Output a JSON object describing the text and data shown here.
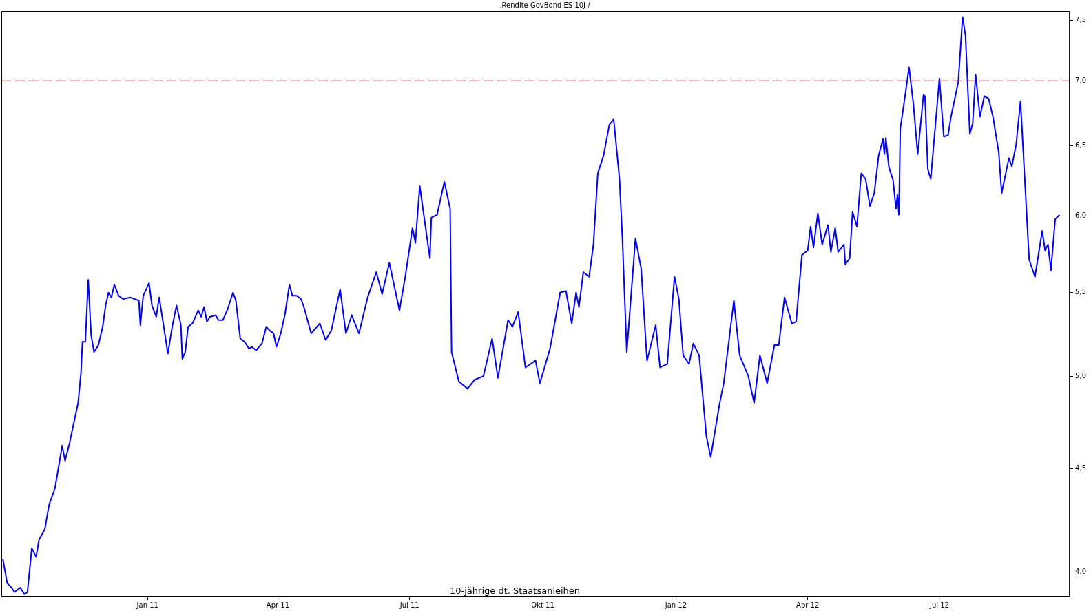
{
  "chart_data": {
    "type": "line",
    "title": ".Rendite GovBond ES 10J /",
    "annotations": [
      "10-jährige dt. Staatsanleihen"
    ],
    "x": [
      "2010-09-23",
      "2010-09-26",
      "2010-09-29",
      "2010-10-01",
      "2010-10-05",
      "2010-10-08",
      "2010-10-10",
      "2010-10-13",
      "2010-10-16",
      "2010-10-18",
      "2010-10-22",
      "2010-10-25",
      "2010-10-29",
      "2010-11-01",
      "2010-11-03",
      "2010-11-05",
      "2010-11-08",
      "2010-11-11",
      "2010-11-14",
      "2010-11-16",
      "2010-11-17",
      "2010-11-19",
      "2010-11-21",
      "2010-11-23",
      "2010-11-25",
      "2010-11-28",
      "2010-12-01",
      "2010-12-03",
      "2010-12-05",
      "2010-12-07",
      "2010-12-09",
      "2010-12-12",
      "2010-12-15",
      "2010-12-20",
      "2010-12-23",
      "2010-12-26",
      "2010-12-27",
      "2010-12-29",
      "2011-01-02",
      "2011-01-04",
      "2011-01-07",
      "2011-01-09",
      "2011-01-12",
      "2011-01-15",
      "2011-01-18",
      "2011-01-21",
      "2011-01-24",
      "2011-01-25",
      "2011-01-27",
      "2011-01-29",
      "2011-02-01",
      "2011-02-05",
      "2011-02-07",
      "2011-02-09",
      "2011-02-11",
      "2011-02-13",
      "2011-02-17",
      "2011-02-19",
      "2011-02-22",
      "2011-02-25",
      "2011-03-01",
      "2011-03-03",
      "2011-03-06",
      "2011-03-09",
      "2011-03-12",
      "2011-03-14",
      "2011-03-17",
      "2011-03-21",
      "2011-03-24",
      "2011-03-26",
      "2011-03-29",
      "2011-03-31",
      "2011-04-03",
      "2011-04-06",
      "2011-04-09",
      "2011-04-11",
      "2011-04-14",
      "2011-04-17",
      "2011-04-19",
      "2011-04-24",
      "2011-04-30",
      "2011-05-04",
      "2011-05-08",
      "2011-05-14",
      "2011-05-18",
      "2011-05-22",
      "2011-05-27",
      "2011-06-02",
      "2011-06-08",
      "2011-06-12",
      "2011-06-17",
      "2011-06-24",
      "2011-06-28",
      "2011-07-03",
      "2011-07-05",
      "2011-07-08",
      "2011-07-15",
      "2011-07-16",
      "2011-07-20",
      "2011-07-25",
      "2011-07-29",
      "2011-07-30",
      "2011-08-04",
      "2011-08-10",
      "2011-08-15",
      "2011-08-21",
      "2011-08-27",
      "2011-08-31",
      "2011-09-07",
      "2011-09-10",
      "2011-09-14",
      "2011-09-19",
      "2011-09-26",
      "2011-09-29",
      "2011-10-06",
      "2011-10-13",
      "2011-10-17",
      "2011-10-21",
      "2011-10-24",
      "2011-10-26",
      "2011-10-29",
      "2011-11-02",
      "2011-11-05",
      "2011-11-08",
      "2011-11-12",
      "2011-11-16",
      "2011-11-19",
      "2011-11-23",
      "2011-11-25",
      "2011-11-28",
      "2011-12-04",
      "2011-12-08",
      "2011-12-12",
      "2011-12-18",
      "2011-12-21",
      "2011-12-26",
      "2011-12-31",
      "2012-01-03",
      "2012-01-06",
      "2012-01-10",
      "2012-01-13",
      "2012-01-17",
      "2012-01-22",
      "2012-01-25",
      "2012-01-31",
      "2012-02-03",
      "2012-02-10",
      "2012-02-14",
      "2012-02-20",
      "2012-02-24",
      "2012-02-28",
      "2012-03-04",
      "2012-03-09",
      "2012-03-12",
      "2012-03-16",
      "2012-03-21",
      "2012-03-24",
      "2012-03-28",
      "2012-04-01",
      "2012-04-03",
      "2012-04-05",
      "2012-04-08",
      "2012-04-11",
      "2012-04-15",
      "2012-04-17",
      "2012-04-20",
      "2012-04-22",
      "2012-04-26",
      "2012-04-27",
      "2012-04-30",
      "2012-05-02",
      "2012-05-05",
      "2012-05-08",
      "2012-05-11",
      "2012-05-14",
      "2012-05-17",
      "2012-05-20",
      "2012-05-23",
      "2012-05-24",
      "2012-05-25",
      "2012-05-27",
      "2012-05-30",
      "2012-06-01",
      "2012-06-02",
      "2012-06-03",
      "2012-06-04",
      "2012-06-07",
      "2012-06-10",
      "2012-06-13",
      "2012-06-16",
      "2012-06-20",
      "2012-06-21",
      "2012-06-23",
      "2012-06-25",
      "2012-07-01",
      "2012-07-04",
      "2012-07-07",
      "2012-07-09",
      "2012-07-14",
      "2012-07-17",
      "2012-07-19",
      "2012-07-22",
      "2012-07-24",
      "2012-07-26",
      "2012-07-29",
      "2012-08-01",
      "2012-08-04",
      "2012-08-07",
      "2012-08-11",
      "2012-08-13",
      "2012-08-18",
      "2012-08-20",
      "2012-08-23",
      "2012-08-26",
      "2012-08-28",
      "2012-09-01",
      "2012-09-05",
      "2012-09-10",
      "2012-09-12",
      "2012-09-14",
      "2012-09-16",
      "2012-09-19",
      "2012-09-22"
    ],
    "values": [
      4.06,
      3.95,
      3.93,
      3.91,
      3.93,
      3.9,
      3.91,
      4.11,
      4.07,
      4.15,
      4.2,
      4.32,
      4.4,
      4.53,
      4.62,
      4.54,
      4.63,
      4.74,
      4.85,
      5.02,
      5.2,
      5.2,
      5.58,
      5.24,
      5.14,
      5.18,
      5.29,
      5.42,
      5.5,
      5.47,
      5.55,
      5.48,
      5.46,
      5.47,
      5.46,
      5.45,
      5.3,
      5.48,
      5.56,
      5.42,
      5.35,
      5.47,
      5.3,
      5.13,
      5.29,
      5.42,
      5.3,
      5.1,
      5.14,
      5.29,
      5.31,
      5.39,
      5.35,
      5.41,
      5.32,
      5.35,
      5.36,
      5.33,
      5.33,
      5.39,
      5.5,
      5.45,
      5.22,
      5.2,
      5.16,
      5.17,
      5.15,
      5.19,
      5.29,
      5.27,
      5.25,
      5.17,
      5.25,
      5.37,
      5.55,
      5.48,
      5.48,
      5.46,
      5.41,
      5.25,
      5.31,
      5.21,
      5.27,
      5.52,
      5.25,
      5.36,
      5.25,
      5.47,
      5.63,
      5.49,
      5.69,
      5.39,
      5.6,
      5.92,
      5.82,
      6.21,
      5.72,
      5.99,
      6.01,
      6.24,
      6.05,
      5.14,
      4.97,
      4.93,
      4.98,
      5.0,
      5.22,
      4.99,
      5.33,
      5.29,
      5.38,
      5.05,
      5.09,
      4.96,
      5.16,
      5.5,
      5.51,
      5.31,
      5.5,
      5.41,
      5.63,
      5.6,
      5.81,
      6.3,
      6.43,
      6.66,
      6.7,
      6.26,
      5.85,
      5.14,
      5.85,
      5.65,
      5.09,
      5.3,
      5.05,
      5.07,
      5.6,
      5.46,
      5.12,
      5.07,
      5.19,
      5.12,
      4.67,
      4.56,
      4.84,
      4.96,
      5.45,
      5.12,
      5.0,
      4.85,
      5.12,
      4.96,
      5.18,
      5.18,
      5.47,
      5.31,
      5.32,
      5.74,
      5.77,
      5.93,
      5.79,
      6.02,
      5.81,
      5.94,
      5.76,
      5.92,
      5.76,
      5.81,
      5.68,
      5.72,
      6.03,
      5.93,
      6.3,
      6.26,
      6.07,
      6.16,
      6.43,
      6.55,
      6.44,
      6.56,
      6.35,
      6.25,
      6.05,
      6.15,
      6.01,
      6.63,
      6.86,
      7.11,
      6.82,
      6.44,
      6.89,
      6.88,
      6.33,
      6.26,
      7.02,
      6.57,
      6.58,
      6.72,
      6.99,
      7.53,
      7.37,
      6.59,
      6.67,
      7.05,
      6.72,
      6.88,
      6.86,
      6.72,
      6.45,
      6.16,
      6.41,
      6.35,
      6.51,
      6.84,
      6.44,
      5.71,
      5.6,
      5.9,
      5.77,
      5.81,
      5.64,
      5.98,
      6.01
    ],
    "color": "#0000ff",
    "log": "y",
    "grid": false,
    "legend": false,
    "xlim": [
      "2010-09-22",
      "2012-09-29"
    ],
    "xticks": [
      {
        "value": "2011-01-01",
        "label": "Jan 11"
      },
      {
        "value": "2011-04-01",
        "label": "Apr 11"
      },
      {
        "value": "2011-07-01",
        "label": "Jul 11"
      },
      {
        "value": "2011-10-01",
        "label": "Okt 11"
      },
      {
        "value": "2012-01-01",
        "label": "Jan 12"
      },
      {
        "value": "2012-04-01",
        "label": "Apr 12"
      },
      {
        "value": "2012-07-01",
        "label": "Jul 12"
      }
    ],
    "ylim": [
      3.89,
      7.58
    ],
    "yticks": [
      {
        "value": 4,
        "label": "4,0"
      },
      {
        "value": 4.5,
        "label": "4,5"
      },
      {
        "value": 5,
        "label": "5,0"
      },
      {
        "value": 5.5,
        "label": "5,5"
      },
      {
        "value": 6,
        "label": "6,0"
      },
      {
        "value": 6.5,
        "label": "6,5"
      },
      {
        "value": 7,
        "label": "7,0"
      },
      {
        "value": 7.5,
        "label": "7,5"
      }
    ],
    "ref_lines": [
      {
        "axis": "y",
        "value": 7,
        "color": "#ff0000",
        "line_style": "dashed"
      }
    ]
  }
}
